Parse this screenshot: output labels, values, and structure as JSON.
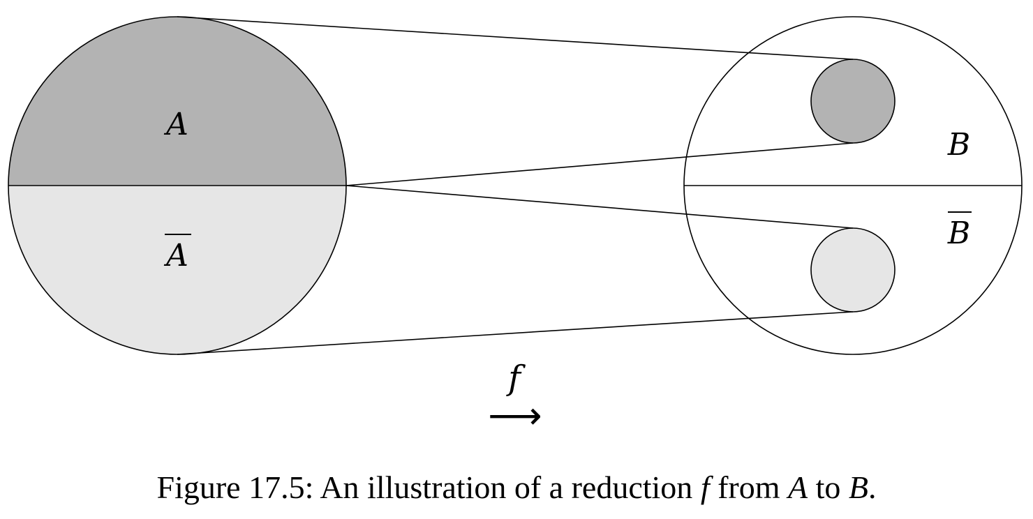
{
  "diagram": {
    "left_set": {
      "top_label": "A",
      "bottom_label": "A",
      "bottom_overline": true
    },
    "right_set": {
      "top_label": "B",
      "bottom_label": "B",
      "bottom_overline": true
    },
    "map_label": "f",
    "arrow_glyph": "⟶",
    "colors": {
      "dark": "#b3b3b3",
      "light": "#e6e6e6",
      "stroke": "#000000",
      "background": "#ffffff"
    }
  },
  "caption": {
    "prefix": "Figure 17.5: An illustration of a reduction ",
    "func": "f",
    "from_word": " from ",
    "source": "A",
    "to_word": " to ",
    "target": "B",
    "end": "."
  }
}
